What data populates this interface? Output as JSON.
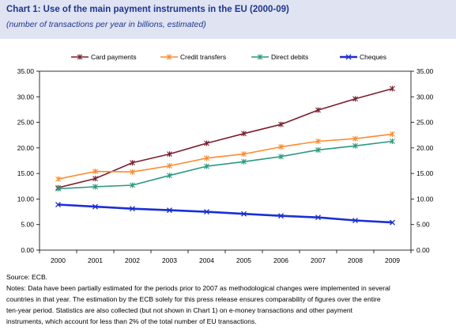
{
  "header": {
    "title": "Chart 1:  Use of the main payment instruments in the EU (2000-09)",
    "subtitle": "(number of transactions per year in billions, estimated)"
  },
  "notes": {
    "source": "Source: ECB.",
    "lines": [
      "Notes: Data have been partially estimated for the periods prior to 2007 as methodological changes were implemented in several",
      "countries in that year. The estimation by the ECB solely for this press release ensures comparability of figures over the entire",
      "ten-year period. Statistics are also collected (but not shown in Chart 1) on e-money transactions and other payment",
      "instruments, which account for less than 2% of the total number of EU transactions."
    ]
  },
  "chart_data": {
    "type": "line",
    "title": "Chart 1:  Use of the main payment instruments in the EU (2000-09)",
    "subtitle": "(number of transactions per year in billions, estimated)",
    "x": [
      "2000",
      "2001",
      "2002",
      "2003",
      "2004",
      "2005",
      "2006",
      "2007",
      "2008",
      "2009"
    ],
    "ylim": [
      0,
      35
    ],
    "yticks": [
      "0.00",
      "5.00",
      "10.00",
      "15.00",
      "20.00",
      "25.00",
      "30.00",
      "35.00"
    ],
    "ytick_values": [
      0,
      5,
      10,
      15,
      20,
      25,
      30,
      35
    ],
    "axes": "left-and-right",
    "grid": false,
    "legend_position": "top",
    "series": [
      {
        "name": "Card payments",
        "color": "#7b1f2e",
        "marker": "star",
        "values": [
          12.2,
          14.0,
          17.1,
          18.8,
          20.9,
          22.8,
          24.6,
          27.4,
          29.6,
          31.6
        ]
      },
      {
        "name": "Credit transfers",
        "color": "#ff8a2b",
        "marker": "star",
        "values": [
          13.9,
          15.4,
          15.3,
          16.5,
          18.0,
          18.8,
          20.2,
          21.3,
          21.8,
          22.7
        ]
      },
      {
        "name": "Direct debits",
        "color": "#2b9a7f",
        "marker": "star",
        "values": [
          12.0,
          12.4,
          12.7,
          14.6,
          16.4,
          17.3,
          18.3,
          19.6,
          20.4,
          21.3
        ]
      },
      {
        "name": "Cheques",
        "color": "#1a2fd6",
        "marker": "cross",
        "values": [
          8.9,
          8.5,
          8.1,
          7.8,
          7.5,
          7.1,
          6.7,
          6.4,
          5.8,
          5.4
        ]
      }
    ]
  }
}
